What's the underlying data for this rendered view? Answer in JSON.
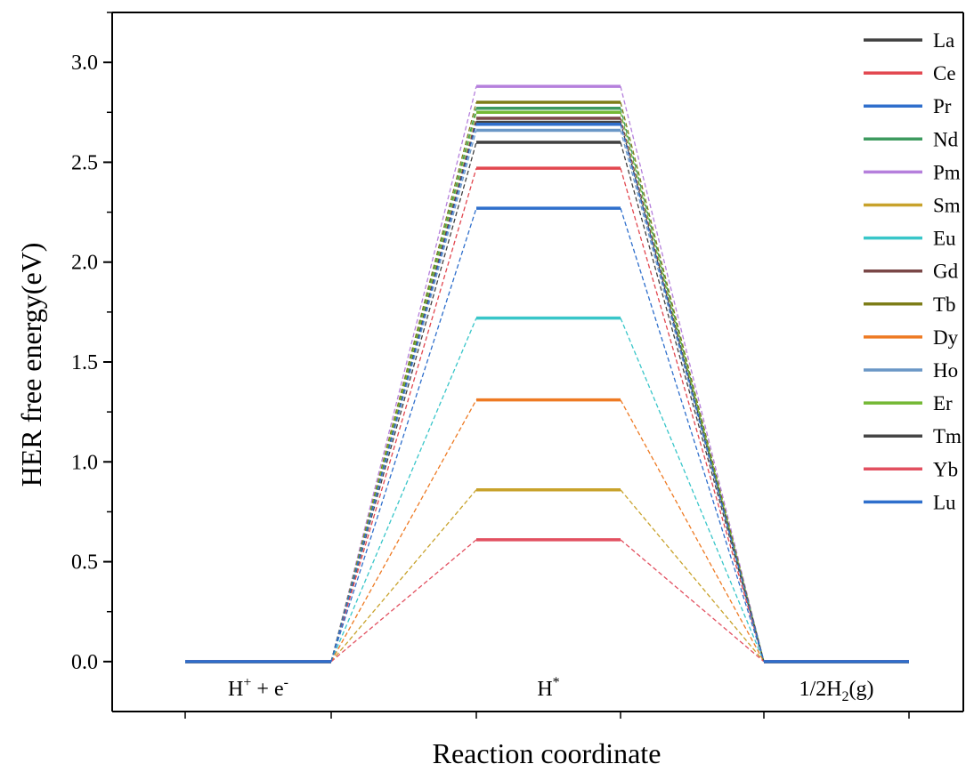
{
  "chart_data": {
    "type": "line",
    "title": "",
    "xlabel": "Reaction coordinate",
    "ylabel": "HER free energy(eV)",
    "ylim": [
      -0.25,
      3.25
    ],
    "yticks": [
      "0.0",
      "0.5",
      "1.0",
      "1.5",
      "2.0",
      "2.5",
      "3.0"
    ],
    "states": [
      {
        "main": "H",
        "sup": "+",
        "rest": " + e",
        "sup2": "-",
        "sub": "",
        "tail": ""
      },
      {
        "main": "H",
        "sup": "*",
        "rest": "",
        "sup2": "",
        "sub": "",
        "tail": ""
      },
      {
        "main": "1/2H",
        "sup": "",
        "rest": "",
        "sup2": "",
        "sub": "2",
        "tail": "(g)"
      }
    ],
    "legend_position": "top-right",
    "grid": false,
    "series": [
      {
        "name": "La",
        "color": "#404040",
        "values": [
          0,
          2.6,
          0
        ]
      },
      {
        "name": "Ce",
        "color": "#e2474f",
        "values": [
          0,
          2.47,
          0
        ]
      },
      {
        "name": "Pr",
        "color": "#2f6fcc",
        "values": [
          0,
          2.27,
          0
        ]
      },
      {
        "name": "Nd",
        "color": "#3d9a5f",
        "values": [
          0,
          2.77,
          0
        ]
      },
      {
        "name": "Pm",
        "color": "#b57fdc",
        "values": [
          0,
          2.88,
          0
        ]
      },
      {
        "name": "Sm",
        "color": "#c8a22b",
        "values": [
          0,
          0.86,
          0
        ]
      },
      {
        "name": "Eu",
        "color": "#39c6c9",
        "values": [
          0,
          1.72,
          0
        ]
      },
      {
        "name": "Gd",
        "color": "#7a4747",
        "values": [
          0,
          2.72,
          0
        ]
      },
      {
        "name": "Tb",
        "color": "#7d7d18",
        "values": [
          0,
          2.8,
          0
        ]
      },
      {
        "name": "Dy",
        "color": "#ee7a23",
        "values": [
          0,
          1.31,
          0
        ]
      },
      {
        "name": "Ho",
        "color": "#6a97c6",
        "values": [
          0,
          2.66,
          0
        ]
      },
      {
        "name": "Er",
        "color": "#74b834",
        "values": [
          0,
          2.75,
          0
        ]
      },
      {
        "name": "Tm",
        "color": "#454545",
        "values": [
          0,
          2.7,
          0
        ]
      },
      {
        "name": "Yb",
        "color": "#e25060",
        "values": [
          0,
          0.61,
          0
        ]
      },
      {
        "name": "Lu",
        "color": "#2f6fcc",
        "values": [
          0,
          2.69,
          0
        ]
      }
    ]
  }
}
